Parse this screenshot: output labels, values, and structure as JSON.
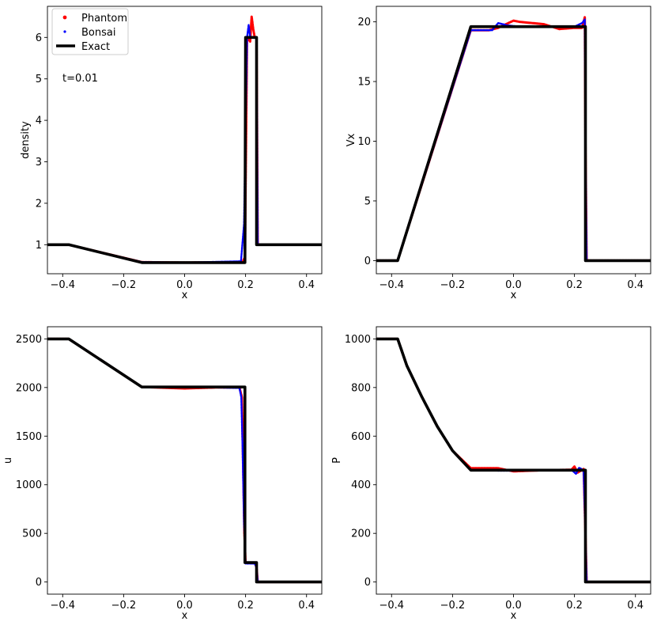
{
  "legend": {
    "items": [
      {
        "label": "Phantom",
        "color": "#ff0000",
        "marker": "dot"
      },
      {
        "label": "Bonsai",
        "color": "#0000ff",
        "marker": "dot"
      },
      {
        "label": "Exact",
        "color": "#000000",
        "marker": "line"
      }
    ]
  },
  "annotation": "t=0.01",
  "chart_data": [
    {
      "type": "scatter",
      "id": "density",
      "xlabel": "x",
      "ylabel": "density",
      "xlim": [
        -0.45,
        0.45
      ],
      "ylim": [
        0.3,
        6.75
      ],
      "xticks": [
        -0.4,
        -0.2,
        0.0,
        0.2,
        0.4
      ],
      "xtick_labels": [
        "−0.4",
        "−0.2",
        "0.0",
        "0.2",
        "0.4"
      ],
      "yticks": [
        1,
        2,
        3,
        4,
        5,
        6
      ],
      "ytick_labels": [
        "1",
        "2",
        "3",
        "4",
        "5",
        "6"
      ],
      "series": [
        {
          "name": "Exact",
          "x": [
            -0.45,
            -0.38,
            -0.14,
            0.198,
            0.198,
            0.2,
            0.236,
            0.236,
            0.45
          ],
          "y": [
            1.0,
            1.0,
            0.57,
            0.57,
            0.57,
            6.0,
            6.0,
            1.0,
            1.0
          ]
        },
        {
          "name": "Phantom",
          "x": [
            -0.45,
            -0.38,
            -0.14,
            0.0,
            0.19,
            0.198,
            0.205,
            0.215,
            0.22,
            0.225,
            0.23,
            0.236,
            0.24,
            0.45
          ],
          "y": [
            1.0,
            1.0,
            0.58,
            0.57,
            0.58,
            0.7,
            6.0,
            5.9,
            6.5,
            6.2,
            6.0,
            6.0,
            1.0,
            1.0
          ]
        },
        {
          "name": "Bonsai",
          "x": [
            -0.45,
            -0.38,
            -0.14,
            0.0,
            0.185,
            0.195,
            0.205,
            0.21,
            0.215,
            0.225,
            0.236,
            0.24,
            0.45
          ],
          "y": [
            1.0,
            1.0,
            0.58,
            0.57,
            0.6,
            1.5,
            6.0,
            6.3,
            6.0,
            6.0,
            6.0,
            1.0,
            1.0
          ]
        }
      ]
    },
    {
      "type": "scatter",
      "id": "vx",
      "xlabel": "x",
      "ylabel": "Vx",
      "xlim": [
        -0.45,
        0.45
      ],
      "ylim": [
        -1.1,
        21.3
      ],
      "xticks": [
        -0.4,
        -0.2,
        0.0,
        0.2,
        0.4
      ],
      "xtick_labels": [
        "−0.4",
        "−0.2",
        "0.0",
        "0.2",
        "0.4"
      ],
      "yticks": [
        0,
        5,
        10,
        15,
        20
      ],
      "ytick_labels": [
        "0",
        "5",
        "10",
        "15",
        "20"
      ],
      "series": [
        {
          "name": "Exact",
          "x": [
            -0.45,
            -0.38,
            -0.14,
            0.236,
            0.236,
            0.45
          ],
          "y": [
            0,
            0,
            19.6,
            19.6,
            0,
            0
          ]
        },
        {
          "name": "Phantom",
          "x": [
            -0.45,
            -0.38,
            -0.14,
            -0.08,
            -0.05,
            0.0,
            0.02,
            0.1,
            0.15,
            0.2,
            0.225,
            0.234,
            0.236,
            0.24,
            0.45
          ],
          "y": [
            0,
            0,
            19.3,
            19.3,
            19.5,
            20.1,
            20.0,
            19.8,
            19.4,
            19.5,
            19.5,
            20.4,
            10.0,
            0,
            0
          ]
        },
        {
          "name": "Bonsai",
          "x": [
            -0.45,
            -0.38,
            -0.14,
            -0.07,
            -0.05,
            -0.02,
            0.02,
            0.1,
            0.2,
            0.225,
            0.234,
            0.236,
            0.24,
            0.45
          ],
          "y": [
            0,
            0,
            19.3,
            19.3,
            19.9,
            19.7,
            19.6,
            19.6,
            19.6,
            19.9,
            20.2,
            10.0,
            0,
            0
          ]
        }
      ]
    },
    {
      "type": "scatter",
      "id": "u",
      "xlabel": "x",
      "ylabel": "u",
      "xlim": [
        -0.45,
        0.45
      ],
      "ylim": [
        -125,
        2625
      ],
      "xticks": [
        -0.4,
        -0.2,
        0.0,
        0.2,
        0.4
      ],
      "xtick_labels": [
        "−0.4",
        "−0.2",
        "0.0",
        "0.2",
        "0.4"
      ],
      "yticks": [
        0,
        500,
        1000,
        1500,
        2000,
        2500
      ],
      "ytick_labels": [
        "0",
        "500",
        "1000",
        "1500",
        "2000",
        "2500"
      ],
      "series": [
        {
          "name": "Exact",
          "x": [
            -0.45,
            -0.38,
            -0.14,
            0.198,
            0.198,
            0.236,
            0.236,
            0.45
          ],
          "y": [
            2500,
            2500,
            2005,
            2005,
            200,
            200,
            0,
            0
          ]
        },
        {
          "name": "Phantom",
          "x": [
            -0.45,
            -0.38,
            -0.14,
            0.0,
            0.1,
            0.18,
            0.188,
            0.192,
            0.196,
            0.2,
            0.23,
            0.236,
            0.24,
            0.45
          ],
          "y": [
            2500,
            2500,
            2005,
            1990,
            2000,
            2000,
            1900,
            1200,
            500,
            200,
            200,
            150,
            0,
            0
          ]
        },
        {
          "name": "Bonsai",
          "x": [
            -0.45,
            -0.38,
            -0.14,
            0.0,
            0.1,
            0.18,
            0.186,
            0.19,
            0.195,
            0.2,
            0.23,
            0.236,
            0.24,
            0.45
          ],
          "y": [
            2500,
            2500,
            2005,
            2000,
            2000,
            1995,
            1900,
            1400,
            600,
            190,
            190,
            150,
            0,
            0
          ]
        }
      ]
    },
    {
      "type": "scatter",
      "id": "p",
      "xlabel": "x",
      "ylabel": "P",
      "xlim": [
        -0.45,
        0.45
      ],
      "ylim": [
        -50,
        1050
      ],
      "xticks": [
        -0.4,
        -0.2,
        0.0,
        0.2,
        0.4
      ],
      "xtick_labels": [
        "−0.4",
        "−0.2",
        "0.0",
        "0.2",
        "0.4"
      ],
      "yticks": [
        0,
        200,
        400,
        600,
        800,
        1000
      ],
      "ytick_labels": [
        "0",
        "200",
        "400",
        "600",
        "800",
        "1000"
      ],
      "series": [
        {
          "name": "Exact",
          "x": [
            -0.45,
            -0.38,
            -0.35,
            -0.3,
            -0.25,
            -0.2,
            -0.14,
            0.236,
            0.236,
            0.45
          ],
          "y": [
            1000,
            1000,
            890,
            760,
            640,
            540,
            460,
            460,
            0,
            0
          ]
        },
        {
          "name": "Phantom",
          "x": [
            -0.45,
            -0.38,
            -0.35,
            -0.3,
            -0.25,
            -0.2,
            -0.14,
            -0.05,
            0.0,
            0.1,
            0.19,
            0.2,
            0.21,
            0.23,
            0.236,
            0.24,
            0.45
          ],
          "y": [
            1000,
            1000,
            890,
            760,
            640,
            540,
            468,
            468,
            455,
            460,
            462,
            475,
            450,
            465,
            200,
            0,
            0
          ]
        },
        {
          "name": "Bonsai",
          "x": [
            -0.45,
            -0.38,
            -0.35,
            -0.3,
            -0.25,
            -0.2,
            -0.14,
            -0.05,
            0.0,
            0.1,
            0.19,
            0.205,
            0.215,
            0.23,
            0.236,
            0.24,
            0.45
          ],
          "y": [
            1000,
            1000,
            890,
            760,
            640,
            540,
            462,
            458,
            458,
            460,
            462,
            445,
            470,
            460,
            200,
            0,
            0
          ]
        }
      ]
    }
  ]
}
